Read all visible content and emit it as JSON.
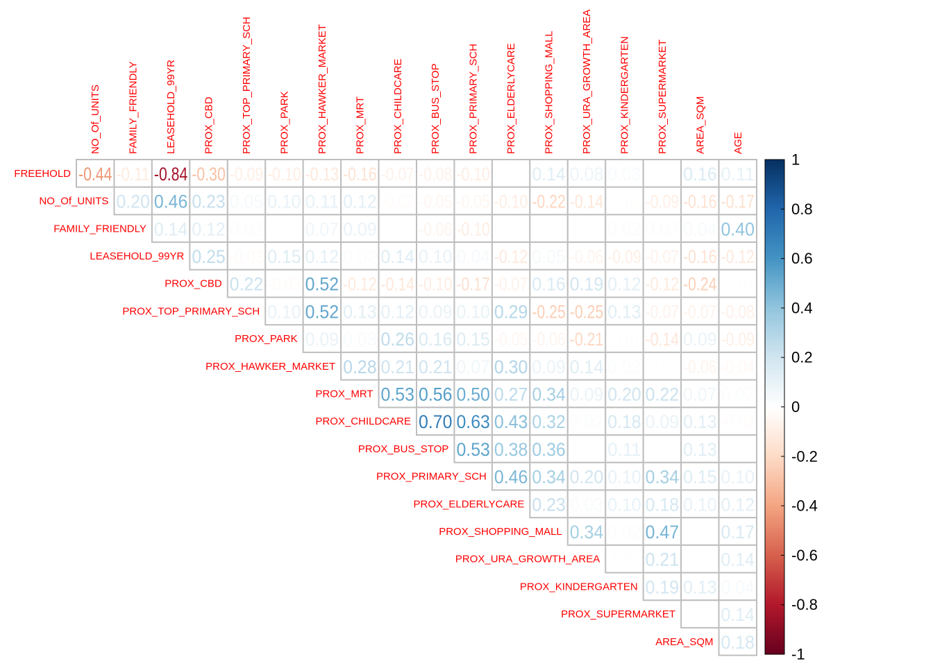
{
  "chart_data": {
    "type": "heatmap",
    "style": "corrplot upper triangle, numbers colored by correlation",
    "columns": [
      "NO_Of_UNITS",
      "FAMILY_FRIENDLY",
      "LEASEHOLD_99YR",
      "PROX_CBD",
      "PROX_TOP_PRIMARY_SCH",
      "PROX_PARK",
      "PROX_HAWKER_MARKET",
      "PROX_MRT",
      "PROX_CHILDCARE",
      "PROX_BUS_STOP",
      "PROX_PRIMARY_SCH",
      "PROX_ELDERLYCARE",
      "PROX_SHOPPING_MALL",
      "PROX_URA_GROWTH_AREA",
      "PROX_KINDERGARTEN",
      "PROX_SUPERMARKET",
      "AREA_SQM",
      "AGE"
    ],
    "rows": [
      "FREEHOLD",
      "NO_Of_UNITS",
      "FAMILY_FRIENDLY",
      "LEASEHOLD_99YR",
      "PROX_CBD",
      "PROX_TOP_PRIMARY_SCH",
      "PROX_PARK",
      "PROX_HAWKER_MARKET",
      "PROX_MRT",
      "PROX_CHILDCARE",
      "PROX_BUS_STOP",
      "PROX_PRIMARY_SCH",
      "PROX_ELDERLYCARE",
      "PROX_SHOPPING_MALL",
      "PROX_URA_GROWTH_AREA",
      "PROX_KINDERGARTEN",
      "PROX_SUPERMARKET",
      "AREA_SQM"
    ],
    "values": [
      [
        -0.44,
        -0.11,
        -0.84,
        -0.3,
        -0.09,
        -0.1,
        -0.13,
        -0.16,
        -0.07,
        -0.08,
        -0.1,
        0.01,
        0.14,
        0.08,
        0.03,
        0.0,
        0.16,
        0.11
      ],
      [
        0.2,
        0.46,
        0.23,
        0.05,
        0.1,
        0.11,
        0.12,
        -0.02,
        -0.05,
        -0.05,
        -0.1,
        -0.22,
        -0.14,
        -0.01,
        -0.09,
        -0.16,
        -0.17
      ],
      [
        0.14,
        0.12,
        0.02,
        0.01,
        0.07,
        0.09,
        -0.0,
        -0.06,
        -0.1,
        0.01,
        0.0,
        0.0,
        0.02,
        0.02,
        0.04,
        0.4
      ],
      [
        0.25,
        -0.03,
        0.15,
        0.12,
        0.02,
        0.14,
        0.1,
        0.04,
        -0.12,
        0.05,
        -0.06,
        -0.09,
        -0.07,
        -0.16,
        -0.12
      ],
      [
        0.22,
        -0.03,
        0.52,
        -0.12,
        -0.14,
        -0.1,
        -0.17,
        -0.07,
        0.16,
        0.19,
        0.12,
        -0.12,
        -0.24,
        -0.01
      ],
      [
        0.1,
        0.52,
        0.13,
        0.12,
        0.09,
        0.1,
        0.29,
        -0.25,
        -0.25,
        0.13,
        -0.07,
        -0.07,
        -0.08
      ],
      [
        0.09,
        0.03,
        0.26,
        0.16,
        0.15,
        -0.05,
        -0.06,
        -0.21,
        -0.01,
        -0.14,
        0.09,
        -0.09
      ],
      [
        0.28,
        0.21,
        0.21,
        0.07,
        0.3,
        0.09,
        0.14,
        0.02,
        -0.01,
        -0.06,
        -0.04
      ],
      [
        0.53,
        0.56,
        0.5,
        0.27,
        0.34,
        0.09,
        0.2,
        0.22,
        0.07,
        0.02
      ],
      [
        0.7,
        0.63,
        0.43,
        0.32,
        0.02,
        0.18,
        0.09,
        0.13,
        -0.02
      ],
      [
        0.53,
        0.38,
        0.36,
        0.0,
        0.11,
        0.0,
        0.13,
        0.01
      ],
      [
        0.46,
        0.34,
        0.2,
        0.1,
        0.34,
        0.15,
        0.1
      ],
      [
        0.23,
        0.03,
        0.1,
        0.18,
        0.1,
        0.12
      ],
      [
        0.34,
        0.02,
        0.47,
        0.0,
        0.17
      ],
      [
        -0.01,
        0.21,
        0.0,
        0.14
      ],
      [
        0.19,
        0.13,
        0.04
      ],
      [
        0.0,
        0.14
      ],
      [
        0.18
      ]
    ],
    "colorbar": {
      "range": [
        -1,
        1
      ],
      "ticks": [
        "1",
        "0.8",
        "0.6",
        "0.4",
        "0.2",
        "0",
        "-0.2",
        "-0.4",
        "-0.6",
        "-0.8",
        "-1"
      ],
      "palette": [
        "#67001F",
        "#B2182B",
        "#D6604D",
        "#F4A582",
        "#FDDBC7",
        "#FFFFFF",
        "#D1E5F0",
        "#92C5DE",
        "#4393C3",
        "#2166AC",
        "#053061"
      ]
    },
    "label_color": "#FF0000",
    "grid_color": "#BEBEBE"
  }
}
